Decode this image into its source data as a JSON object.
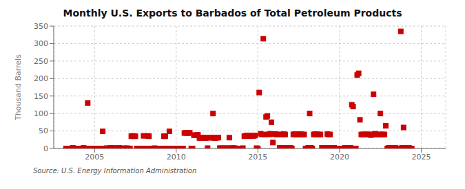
{
  "chart_data": {
    "type": "scatter",
    "title": "Monthly U.S. Exports to Barbados of Total Petroleum Products",
    "ylabel": "Thousand Barrels",
    "annotation": "Source: U.S. Energy Information Administration",
    "color": "#cc0000",
    "marker": "square",
    "grid": true,
    "xlim": [
      2002.5,
      2026.5
    ],
    "xticks": [
      2005,
      2010,
      2015,
      2020,
      2025
    ],
    "ylim": [
      0,
      350
    ],
    "yticks": [
      0,
      50,
      100,
      150,
      200,
      250,
      300,
      350
    ],
    "x": [
      2003.25,
      2003.33,
      2003.42,
      2003.5,
      2003.58,
      2003.67,
      2003.75,
      2003.83,
      2003.92,
      2004.0,
      2004.08,
      2004.17,
      2004.25,
      2004.33,
      2004.42,
      2004.5,
      2004.58,
      2004.67,
      2004.75,
      2004.83,
      2004.92,
      2005.0,
      2005.08,
      2005.17,
      2005.25,
      2005.33,
      2005.42,
      2005.5,
      2005.58,
      2005.67,
      2005.75,
      2005.83,
      2005.92,
      2006.0,
      2006.08,
      2006.17,
      2006.25,
      2006.33,
      2006.42,
      2006.5,
      2006.58,
      2006.67,
      2006.75,
      2006.83,
      2006.92,
      2007.0,
      2007.08,
      2007.17,
      2007.25,
      2007.33,
      2007.42,
      2007.5,
      2007.58,
      2007.67,
      2007.75,
      2007.83,
      2007.92,
      2008.0,
      2008.08,
      2008.17,
      2008.25,
      2008.33,
      2008.42,
      2008.5,
      2008.58,
      2008.67,
      2008.75,
      2008.83,
      2008.92,
      2009.0,
      2009.08,
      2009.17,
      2009.25,
      2009.33,
      2009.42,
      2009.5,
      2009.58,
      2009.67,
      2009.75,
      2009.83,
      2009.92,
      2010.0,
      2010.08,
      2010.17,
      2010.25,
      2010.33,
      2010.42,
      2010.5,
      2010.58,
      2010.67,
      2010.75,
      2010.83,
      2010.92,
      2011.0,
      2011.08,
      2011.17,
      2011.25,
      2011.33,
      2011.42,
      2011.5,
      2011.58,
      2011.67,
      2011.75,
      2011.83,
      2011.92,
      2012.0,
      2012.08,
      2012.17,
      2012.25,
      2012.33,
      2012.42,
      2012.5,
      2012.58,
      2012.67,
      2012.75,
      2012.83,
      2012.92,
      2013.0,
      2013.08,
      2013.17,
      2013.25,
      2013.33,
      2013.42,
      2013.5,
      2013.58,
      2013.67,
      2013.75,
      2013.83,
      2013.92,
      2014.0,
      2014.08,
      2014.17,
      2014.25,
      2014.33,
      2014.42,
      2014.5,
      2014.58,
      2014.67,
      2014.75,
      2014.83,
      2014.92,
      2015.0,
      2015.08,
      2015.17,
      2015.25,
      2015.33,
      2015.42,
      2015.5,
      2015.58,
      2015.67,
      2015.75,
      2015.83,
      2015.92,
      2016.0,
      2016.08,
      2016.17,
      2016.25,
      2016.33,
      2016.42,
      2016.5,
      2016.58,
      2016.67,
      2016.75,
      2016.83,
      2016.92,
      2017.0,
      2017.08,
      2017.17,
      2017.25,
      2017.33,
      2017.42,
      2017.5,
      2017.58,
      2017.67,
      2017.75,
      2017.83,
      2017.92,
      2018.0,
      2018.08,
      2018.17,
      2018.25,
      2018.33,
      2018.42,
      2018.5,
      2018.58,
      2018.67,
      2018.75,
      2018.83,
      2018.92,
      2019.0,
      2019.08,
      2019.17,
      2019.25,
      2019.33,
      2019.42,
      2019.5,
      2019.58,
      2019.67,
      2019.75,
      2019.83,
      2019.92,
      2020.0,
      2020.08,
      2020.17,
      2020.25,
      2020.33,
      2020.42,
      2020.5,
      2020.58,
      2020.67,
      2020.75,
      2020.83,
      2020.92,
      2021.0,
      2021.08,
      2021.17,
      2021.25,
      2021.33,
      2021.42,
      2021.5,
      2021.58,
      2021.67,
      2021.75,
      2021.83,
      2021.92,
      2022.0,
      2022.08,
      2022.17,
      2022.25,
      2022.33,
      2022.42,
      2022.5,
      2022.58,
      2022.67,
      2022.75,
      2022.83,
      2022.92,
      2023.0,
      2023.08,
      2023.17,
      2023.25,
      2023.33,
      2023.42,
      2023.5,
      2023.58,
      2023.67,
      2023.75,
      2023.83,
      2023.92,
      2024.0,
      2024.08,
      2024.17,
      2024.25,
      2024.33,
      2024.42
    ],
    "values": [
      0,
      0,
      0,
      0,
      0,
      2,
      0,
      0,
      0,
      0,
      0,
      0,
      0,
      2,
      0,
      0,
      130,
      0,
      0,
      0,
      0,
      0,
      0,
      0,
      0,
      0,
      0,
      49,
      0,
      0,
      1,
      0,
      1,
      2,
      2,
      0,
      1,
      0,
      1,
      2,
      0,
      0,
      0,
      1,
      0,
      1,
      0,
      0,
      35,
      36,
      35,
      35,
      0,
      0,
      0,
      0,
      0,
      36,
      0,
      0,
      36,
      35,
      0,
      0,
      0,
      1,
      0,
      0,
      0,
      0,
      0,
      0,
      35,
      35,
      0,
      0,
      49,
      0,
      0,
      0,
      0,
      0,
      0,
      0,
      0,
      0,
      0,
      44,
      45,
      44,
      44,
      45,
      0,
      0,
      38,
      38,
      38,
      39,
      30,
      30,
      31,
      31,
      30,
      30,
      1,
      31,
      31,
      31,
      100,
      30,
      30,
      31,
      31,
      1,
      1,
      0,
      0,
      1,
      1,
      0,
      31,
      1,
      1,
      1,
      1,
      0,
      0,
      0,
      0,
      0,
      1,
      35,
      36,
      37,
      37,
      35,
      37,
      36,
      36,
      37,
      1,
      0,
      160,
      42,
      40,
      314,
      40,
      90,
      93,
      40,
      42,
      75,
      17,
      41,
      41,
      40,
      40,
      2,
      2,
      40,
      41,
      40,
      2,
      0,
      0,
      2,
      0,
      40,
      41,
      40,
      40,
      40,
      41,
      40,
      40,
      40,
      0,
      0,
      2,
      100,
      2,
      0,
      40,
      41,
      40,
      40,
      40,
      40,
      2,
      0,
      0,
      2,
      41,
      40,
      40,
      2,
      0,
      2,
      0,
      0,
      0,
      0,
      0,
      0,
      0,
      2,
      0,
      2,
      2,
      2,
      125,
      120,
      0,
      0,
      210,
      215,
      82,
      40,
      40,
      40,
      40,
      40,
      40,
      40,
      38,
      40,
      155,
      42,
      40,
      40,
      40,
      100,
      40,
      40,
      40,
      65,
      0,
      2,
      2,
      2,
      2,
      2,
      2,
      0,
      0,
      0,
      335,
      2,
      60,
      2,
      2,
      0,
      2,
      0,
      0
    ]
  }
}
